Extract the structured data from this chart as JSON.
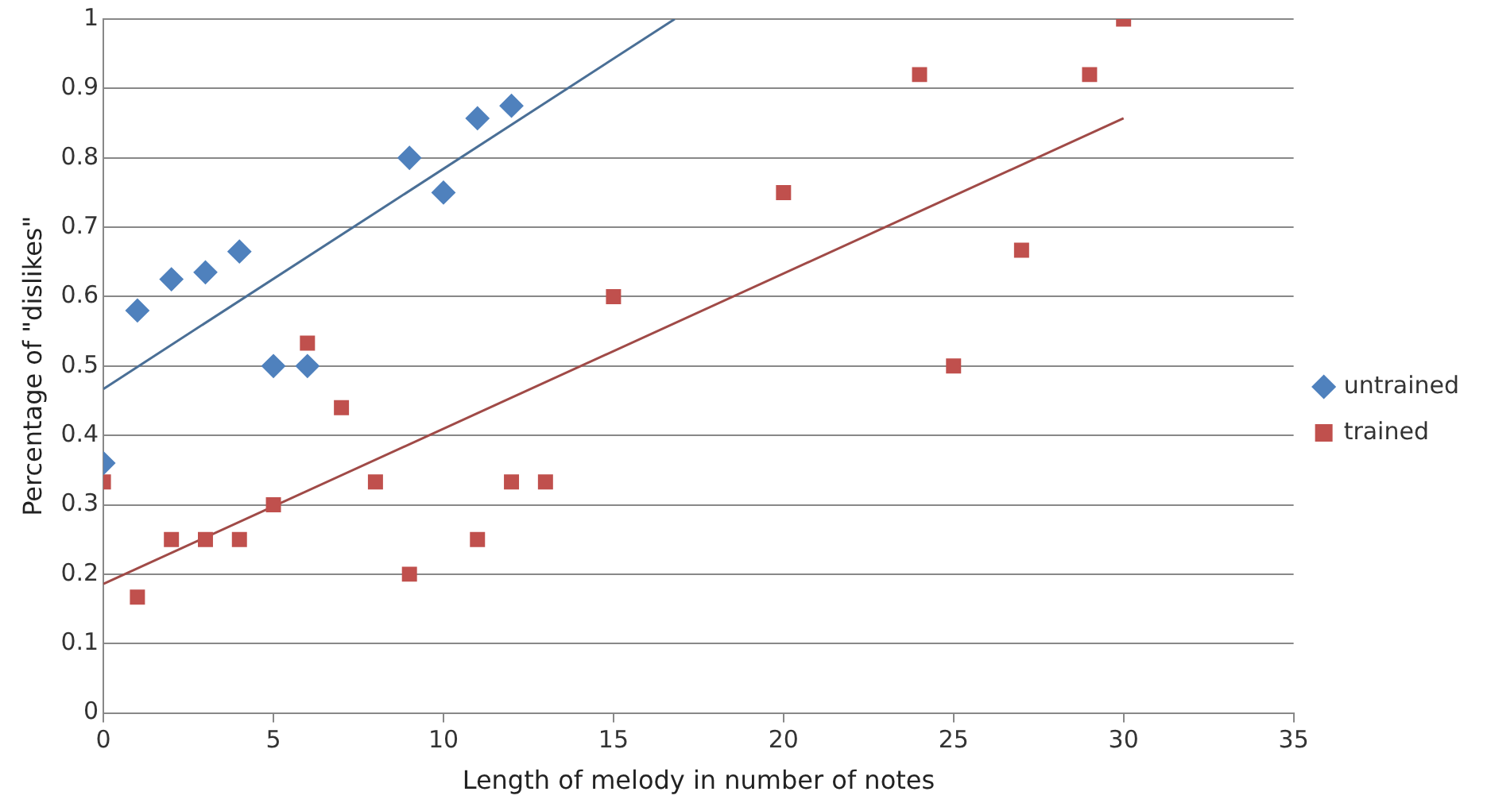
{
  "chart_data": {
    "type": "scatter",
    "xlabel": "Length of melody in number of notes",
    "ylabel": "Percentage of \"dislikes\"",
    "xlim": [
      0,
      35
    ],
    "xticks": [
      0,
      5,
      10,
      15,
      20,
      25,
      30,
      35
    ],
    "ylim": [
      0,
      1
    ],
    "yticks": [
      0,
      0.1,
      0.2,
      0.3,
      0.4,
      0.5,
      0.6,
      0.7,
      0.8,
      0.9,
      1
    ],
    "grid": "y",
    "legend": "right",
    "series": [
      {
        "name": "untrained",
        "color": "#4f81bd",
        "marker": "diamond",
        "x": [
          0,
          1,
          2,
          3,
          4,
          5,
          6,
          9,
          10,
          11,
          12
        ],
        "values": [
          0.36,
          0.58,
          0.625,
          0.635,
          0.665,
          0.5,
          0.5,
          0.8,
          0.75,
          0.857,
          0.875
        ]
      },
      {
        "name": "trained",
        "color": "#c0504d",
        "marker": "square",
        "x": [
          0,
          1,
          2,
          3,
          4,
          5,
          6,
          7,
          8,
          9,
          11,
          12,
          13,
          15,
          20,
          24,
          25,
          27,
          29,
          30
        ],
        "values": [
          0.333,
          0.167,
          0.25,
          0.25,
          0.25,
          0.3,
          0.533,
          0.44,
          0.333,
          0.2,
          0.25,
          0.333,
          0.333,
          0.6,
          0.75,
          0.92,
          0.5,
          0.667,
          0.92,
          1.0
        ]
      },
      {
        "type": "line",
        "color": "#4a6f96",
        "marker": "none",
        "line_style": "solid",
        "x": [
          0,
          16.8
        ],
        "values": [
          0.467,
          1
        ]
      },
      {
        "type": "line",
        "color": "#a04a47",
        "marker": "none",
        "line_style": "solid",
        "x": [
          0,
          30
        ],
        "values": [
          0.186,
          0.857
        ]
      }
    ]
  }
}
